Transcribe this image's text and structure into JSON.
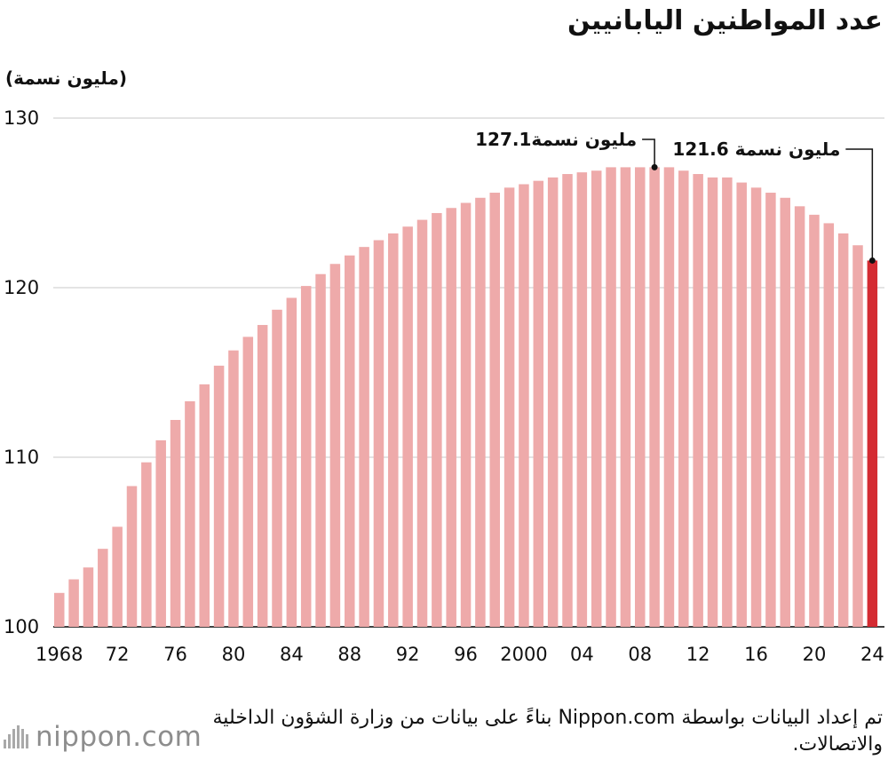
{
  "chart_data": {
    "type": "bar",
    "title": "عدد المواطنين اليابانيين",
    "ylabel": "(مليون نسمة)",
    "ylim": [
      100,
      130
    ],
    "yticks": [
      "100",
      "110",
      "120",
      "130"
    ],
    "x_tick_labels": [
      "1968",
      "72",
      "76",
      "80",
      "84",
      "88",
      "92",
      "96",
      "2000",
      "04",
      "08",
      "12",
      "16",
      "20",
      "24"
    ],
    "x": [
      1968,
      1969,
      1970,
      1971,
      1972,
      1973,
      1974,
      1975,
      1976,
      1977,
      1978,
      1979,
      1980,
      1981,
      1982,
      1983,
      1984,
      1985,
      1986,
      1987,
      1988,
      1989,
      1990,
      1991,
      1992,
      1993,
      1994,
      1995,
      1996,
      1997,
      1998,
      1999,
      2000,
      2001,
      2002,
      2003,
      2004,
      2005,
      2006,
      2007,
      2008,
      2009,
      2010,
      2011,
      2012,
      2013,
      2014,
      2015,
      2016,
      2017,
      2018,
      2019,
      2020,
      2021,
      2022,
      2023,
      2024
    ],
    "values": [
      102.0,
      102.8,
      103.5,
      104.6,
      105.9,
      108.3,
      109.7,
      111.0,
      112.2,
      113.3,
      114.3,
      115.4,
      116.3,
      117.1,
      117.8,
      118.7,
      119.4,
      120.1,
      120.8,
      121.4,
      121.9,
      122.4,
      122.8,
      123.2,
      123.6,
      124.0,
      124.4,
      124.7,
      125.0,
      125.3,
      125.6,
      125.9,
      126.1,
      126.3,
      126.5,
      126.7,
      126.8,
      126.9,
      127.1,
      127.1,
      127.1,
      127.1,
      127.1,
      126.9,
      126.7,
      126.5,
      126.5,
      126.2,
      125.9,
      125.6,
      125.3,
      124.8,
      124.3,
      123.8,
      123.2,
      122.5,
      121.6
    ],
    "colors": {
      "bar": "#eeaaaa",
      "highlight": "#d42b32",
      "grid": "#c8c8c8"
    },
    "annotations": [
      {
        "x": 2009,
        "value": 127.1,
        "label": "127.1مليون نسمة"
      },
      {
        "x": 2024,
        "value": 121.6,
        "label": "121.6 مليون نسمة"
      }
    ],
    "grid": true
  },
  "source": "تم إعداد البيانات بواسطة Nippon.com بناءً على بيانات من وزارة الشؤون الداخلية والاتصالات.",
  "logo": {
    "name": "nippon",
    "suffix": ".com"
  }
}
